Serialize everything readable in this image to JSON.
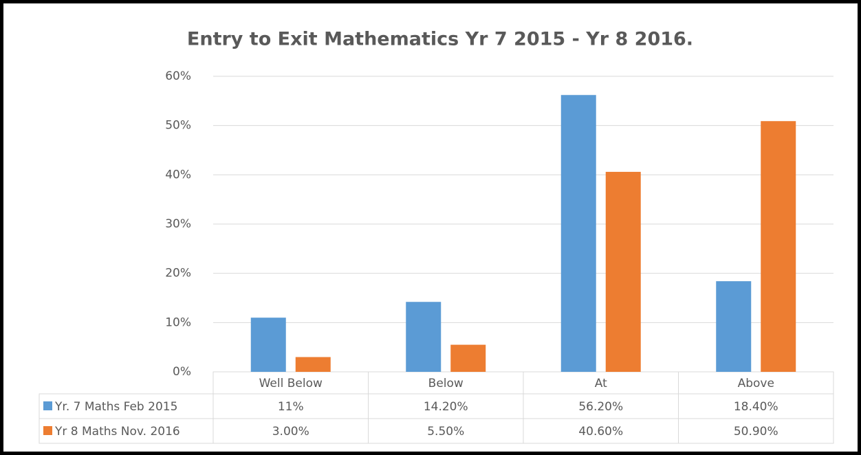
{
  "chart_data": {
    "type": "bar",
    "title": "Entry to Exit Mathematics Yr 7 2015 - Yr 8 2016.",
    "categories": [
      "Well Below",
      "Below",
      "At",
      "Above"
    ],
    "series": [
      {
        "name": "Yr. 7 Maths Feb 2015",
        "color": "#5b9bd5",
        "values": [
          11,
          14.2,
          56.2,
          18.4
        ],
        "value_labels": [
          "11%",
          "14.20%",
          "56.20%",
          "18.40%"
        ]
      },
      {
        "name": "Yr 8 Maths Nov. 2016",
        "color": "#ed7d31",
        "values": [
          3,
          5.5,
          40.6,
          50.9
        ],
        "value_labels": [
          "3.00%",
          "5.50%",
          "40.60%",
          "50.90%"
        ]
      }
    ],
    "ylim": [
      0,
      60
    ],
    "yticks": [
      {
        "value": 0,
        "label": "0%"
      },
      {
        "value": 10,
        "label": "10%"
      },
      {
        "value": 20,
        "label": "20%"
      },
      {
        "value": 30,
        "label": "30%"
      },
      {
        "value": 40,
        "label": "40%"
      },
      {
        "value": 50,
        "label": "50%"
      },
      {
        "value": 60,
        "label": "60%"
      }
    ],
    "grid": true
  }
}
